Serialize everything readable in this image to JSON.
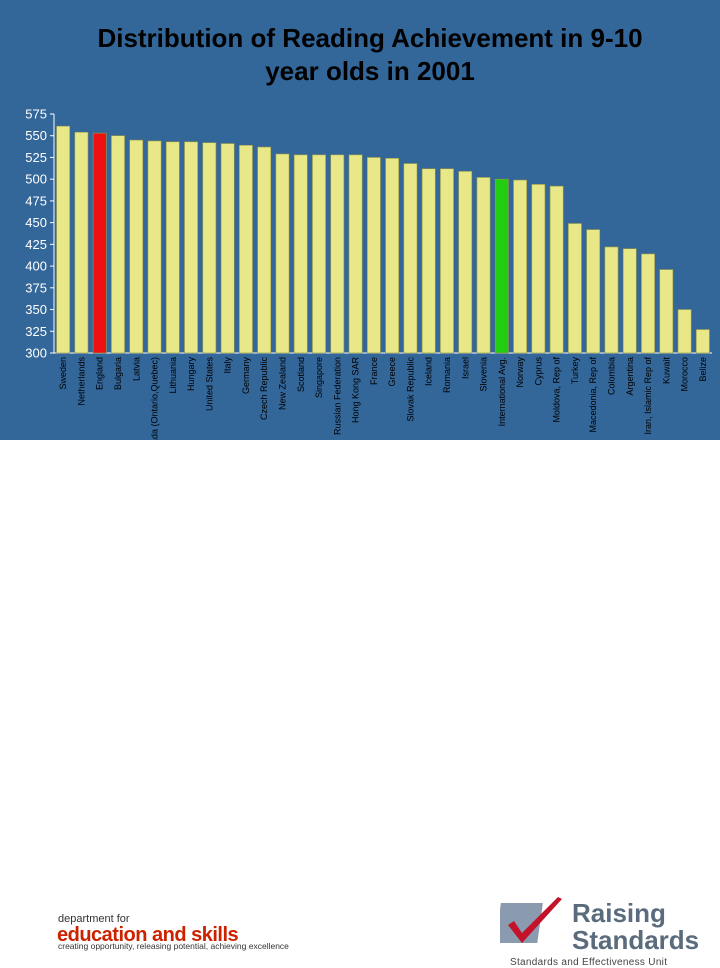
{
  "title_line1": "Distribution of Reading Achievement in 9-10",
  "title_line2": "year olds in 2001",
  "chart_data": {
    "type": "bar",
    "title": "Distribution of Reading Achievement in 9-10 year olds in 2001",
    "categories": [
      "Sweden",
      "Netherlands",
      "England",
      "Bulgaria",
      "Latvia",
      "Canada (Ontario,Quebec)",
      "Lithuania",
      "Hungary",
      "United States",
      "Italy",
      "Germany",
      "Czech Republic",
      "New Zealand",
      "Scotland",
      "Singapore",
      "Russian Federation",
      "Hong Kong SAR",
      "France",
      "Greece",
      "Slovak Republic",
      "Iceland",
      "Romania",
      "Israel",
      "Slovenia",
      "International Avg.",
      "Norway",
      "Cyprus",
      "Moldova, Rep of",
      "Turkey",
      "Macedonia, Rep of",
      "Colombia",
      "Argentina",
      "Iran, Islamic Rep of",
      "Kuwait",
      "Morocco",
      "Belize"
    ],
    "values": [
      561,
      554,
      553,
      550,
      545,
      544,
      543,
      543,
      542,
      541,
      539,
      537,
      529,
      528,
      528,
      528,
      528,
      525,
      524,
      518,
      512,
      512,
      509,
      502,
      500,
      499,
      494,
      492,
      449,
      442,
      422,
      420,
      414,
      396,
      350,
      327
    ],
    "highlight": {
      "England": "#ee1111",
      "International Avg.": "#22cc11"
    },
    "bar_color": "#e8e888",
    "ylim": [
      300,
      575
    ],
    "yticks": [
      300,
      325,
      350,
      375,
      400,
      425,
      450,
      475,
      500,
      525,
      550,
      575
    ],
    "xlabel": "",
    "ylabel": ""
  },
  "footer": {
    "dfes_top": "department for",
    "dfes_main": "education and skills",
    "dfes_sub": "creating opportunity, releasing potential, achieving excellence",
    "rs_name_line1": "Raising",
    "rs_name_line2": "Standards",
    "rs_unit": "Standards and Effectiveness Unit"
  }
}
